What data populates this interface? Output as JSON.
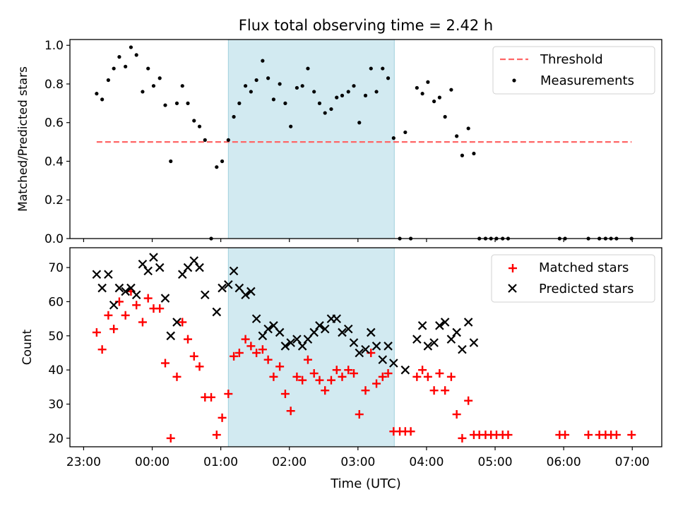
{
  "title": "Flux total observing time = 2.42 h",
  "x_axis": {
    "label": "Time (UTC)",
    "ticks": [
      "23:00",
      "00:00",
      "01:00",
      "02:00",
      "03:00",
      "04:00",
      "05:00",
      "06:00",
      "07:00"
    ],
    "tick_values_h": [
      23,
      24,
      25,
      26,
      27,
      28,
      29,
      30,
      31
    ],
    "range_h": [
      22.8,
      31.43
    ]
  },
  "colors": {
    "measurement": "#000000",
    "threshold": "#ff6666",
    "matched": "#ff0000",
    "predicted": "#000000",
    "shade": "#add8e6"
  },
  "chart_data": [
    {
      "type": "scatter",
      "ylabel": "Matched/Predicted stars",
      "ylim": [
        0.0,
        1.03
      ],
      "yticks": [
        "0.0",
        "0.2",
        "0.4",
        "0.6",
        "0.8",
        "1.0"
      ],
      "ytick_values": [
        0.0,
        0.2,
        0.4,
        0.6,
        0.8,
        1.0
      ],
      "legend_position": "top-right",
      "legend": [
        "Threshold",
        "Measurements"
      ],
      "shaded_x_range": [
        25.11,
        27.53
      ],
      "threshold": {
        "name": "Threshold",
        "y": 0.5,
        "x_range": [
          23.19,
          30.99
        ]
      },
      "series": [
        {
          "name": "Measurements",
          "points": [
            [
              23.19,
              0.75
            ],
            [
              23.27,
              0.72
            ],
            [
              23.36,
              0.82
            ],
            [
              23.44,
              0.88
            ],
            [
              23.52,
              0.94
            ],
            [
              23.61,
              0.89
            ],
            [
              23.69,
              0.99
            ],
            [
              23.77,
              0.95
            ],
            [
              23.86,
              0.76
            ],
            [
              23.94,
              0.88
            ],
            [
              24.02,
              0.79
            ],
            [
              24.11,
              0.83
            ],
            [
              24.19,
              0.69
            ],
            [
              24.27,
              0.4
            ],
            [
              24.36,
              0.7
            ],
            [
              24.44,
              0.79
            ],
            [
              24.52,
              0.7
            ],
            [
              24.61,
              0.61
            ],
            [
              24.69,
              0.58
            ],
            [
              24.77,
              0.51
            ],
            [
              24.86,
              0.0
            ],
            [
              24.94,
              0.37
            ],
            [
              25.02,
              0.4
            ],
            [
              25.11,
              0.51
            ],
            [
              25.19,
              0.63
            ],
            [
              25.27,
              0.7
            ],
            [
              25.36,
              0.79
            ],
            [
              25.44,
              0.76
            ],
            [
              25.52,
              0.82
            ],
            [
              25.61,
              0.92
            ],
            [
              25.69,
              0.83
            ],
            [
              25.77,
              0.72
            ],
            [
              25.86,
              0.8
            ],
            [
              25.94,
              0.7
            ],
            [
              26.02,
              0.58
            ],
            [
              26.11,
              0.78
            ],
            [
              26.19,
              0.79
            ],
            [
              26.27,
              0.88
            ],
            [
              26.36,
              0.76
            ],
            [
              26.44,
              0.7
            ],
            [
              26.52,
              0.65
            ],
            [
              26.61,
              0.67
            ],
            [
              26.69,
              0.73
            ],
            [
              26.77,
              0.74
            ],
            [
              26.86,
              0.76
            ],
            [
              26.94,
              0.79
            ],
            [
              27.02,
              0.6
            ],
            [
              27.11,
              0.74
            ],
            [
              27.19,
              0.88
            ],
            [
              27.27,
              0.76
            ],
            [
              27.36,
              0.88
            ],
            [
              27.44,
              0.83
            ],
            [
              27.52,
              0.52
            ],
            [
              27.61,
              0.0
            ],
            [
              27.69,
              0.55
            ],
            [
              27.77,
              0.0
            ],
            [
              27.86,
              0.78
            ],
            [
              27.94,
              0.75
            ],
            [
              28.02,
              0.81
            ],
            [
              28.11,
              0.71
            ],
            [
              28.19,
              0.73
            ],
            [
              28.27,
              0.63
            ],
            [
              28.36,
              0.77
            ],
            [
              28.44,
              0.53
            ],
            [
              28.52,
              0.43
            ],
            [
              28.61,
              0.57
            ],
            [
              28.69,
              0.44
            ],
            [
              28.77,
              0.0
            ],
            [
              28.86,
              0.0
            ],
            [
              28.94,
              0.0
            ],
            [
              29.02,
              0.0
            ],
            [
              29.11,
              0.0
            ],
            [
              29.19,
              0.0
            ],
            [
              29.94,
              0.0
            ],
            [
              30.02,
              0.0
            ],
            [
              30.36,
              0.0
            ],
            [
              30.52,
              0.0
            ],
            [
              30.61,
              0.0
            ],
            [
              30.69,
              0.0
            ],
            [
              30.77,
              0.0
            ],
            [
              30.99,
              0.0
            ]
          ]
        }
      ]
    },
    {
      "type": "scatter",
      "ylabel": "Count",
      "ylim": [
        17.5,
        75.8
      ],
      "yticks": [
        "20",
        "30",
        "40",
        "50",
        "60",
        "70"
      ],
      "ytick_values": [
        20,
        30,
        40,
        50,
        60,
        70
      ],
      "legend_position": "top-right",
      "legend": [
        "Matched stars",
        "Predicted stars"
      ],
      "shaded_x_range": [
        25.11,
        27.53
      ],
      "series": [
        {
          "name": "Matched stars",
          "marker": "+",
          "points": [
            [
              23.19,
              51
            ],
            [
              23.27,
              46
            ],
            [
              23.36,
              56
            ],
            [
              23.44,
              52
            ],
            [
              23.52,
              60
            ],
            [
              23.61,
              56
            ],
            [
              23.69,
              63
            ],
            [
              23.77,
              59
            ],
            [
              23.86,
              54
            ],
            [
              23.94,
              61
            ],
            [
              24.02,
              58
            ],
            [
              24.11,
              58
            ],
            [
              24.19,
              42
            ],
            [
              24.27,
              20
            ],
            [
              24.36,
              38
            ],
            [
              24.44,
              54
            ],
            [
              24.52,
              49
            ],
            [
              24.61,
              44
            ],
            [
              24.69,
              41
            ],
            [
              24.77,
              32
            ],
            [
              24.86,
              32
            ],
            [
              24.94,
              21
            ],
            [
              25.02,
              26
            ],
            [
              25.11,
              33
            ],
            [
              25.19,
              44
            ],
            [
              25.27,
              45
            ],
            [
              25.36,
              49
            ],
            [
              25.44,
              47
            ],
            [
              25.52,
              45
            ],
            [
              25.61,
              46
            ],
            [
              25.69,
              43
            ],
            [
              25.77,
              38
            ],
            [
              25.86,
              41
            ],
            [
              25.94,
              33
            ],
            [
              26.02,
              28
            ],
            [
              26.11,
              38
            ],
            [
              26.19,
              37
            ],
            [
              26.27,
              43
            ],
            [
              26.36,
              39
            ],
            [
              26.44,
              37
            ],
            [
              26.52,
              34
            ],
            [
              26.61,
              37
            ],
            [
              26.69,
              40
            ],
            [
              26.77,
              38
            ],
            [
              26.86,
              40
            ],
            [
              26.94,
              39
            ],
            [
              27.02,
              27
            ],
            [
              27.11,
              34
            ],
            [
              27.19,
              45
            ],
            [
              27.27,
              36
            ],
            [
              27.36,
              38
            ],
            [
              27.44,
              39
            ],
            [
              27.52,
              22
            ],
            [
              27.61,
              22
            ],
            [
              27.69,
              22
            ],
            [
              27.77,
              22
            ],
            [
              27.86,
              38
            ],
            [
              27.94,
              40
            ],
            [
              28.02,
              38
            ],
            [
              28.11,
              34
            ],
            [
              28.19,
              39
            ],
            [
              28.27,
              34
            ],
            [
              28.36,
              38
            ],
            [
              28.44,
              27
            ],
            [
              28.52,
              20
            ],
            [
              28.61,
              31
            ],
            [
              28.69,
              21
            ],
            [
              28.77,
              21
            ],
            [
              28.86,
              21
            ],
            [
              28.94,
              21
            ],
            [
              29.02,
              21
            ],
            [
              29.11,
              21
            ],
            [
              29.19,
              21
            ],
            [
              29.94,
              21
            ],
            [
              30.02,
              21
            ],
            [
              30.36,
              21
            ],
            [
              30.52,
              21
            ],
            [
              30.61,
              21
            ],
            [
              30.69,
              21
            ],
            [
              30.77,
              21
            ],
            [
              30.99,
              21
            ]
          ]
        },
        {
          "name": "Predicted stars",
          "marker": "x",
          "points": [
            [
              23.19,
              68
            ],
            [
              23.27,
              64
            ],
            [
              23.36,
              68
            ],
            [
              23.44,
              59
            ],
            [
              23.52,
              64
            ],
            [
              23.61,
              63
            ],
            [
              23.69,
              64
            ],
            [
              23.77,
              62
            ],
            [
              23.86,
              71
            ],
            [
              23.94,
              69
            ],
            [
              24.02,
              73
            ],
            [
              24.11,
              70
            ],
            [
              24.19,
              61
            ],
            [
              24.27,
              50
            ],
            [
              24.36,
              54
            ],
            [
              24.44,
              68
            ],
            [
              24.52,
              70
            ],
            [
              24.61,
              72
            ],
            [
              24.69,
              70
            ],
            [
              24.77,
              62
            ],
            [
              24.94,
              57
            ],
            [
              25.02,
              64
            ],
            [
              25.11,
              65
            ],
            [
              25.19,
              69
            ],
            [
              25.27,
              64
            ],
            [
              25.36,
              62
            ],
            [
              25.44,
              63
            ],
            [
              25.52,
              55
            ],
            [
              25.61,
              50
            ],
            [
              25.69,
              52
            ],
            [
              25.77,
              53
            ],
            [
              25.86,
              51
            ],
            [
              25.94,
              47
            ],
            [
              26.02,
              48
            ],
            [
              26.11,
              49
            ],
            [
              26.19,
              47
            ],
            [
              26.27,
              49
            ],
            [
              26.36,
              51
            ],
            [
              26.44,
              53
            ],
            [
              26.52,
              52
            ],
            [
              26.61,
              55
            ],
            [
              26.69,
              55
            ],
            [
              26.77,
              51
            ],
            [
              26.86,
              52
            ],
            [
              26.94,
              48
            ],
            [
              27.02,
              45
            ],
            [
              27.11,
              46
            ],
            [
              27.19,
              51
            ],
            [
              27.27,
              47
            ],
            [
              27.36,
              43
            ],
            [
              27.44,
              47
            ],
            [
              27.52,
              42
            ],
            [
              27.69,
              40
            ],
            [
              27.86,
              49
            ],
            [
              27.94,
              53
            ],
            [
              28.02,
              47
            ],
            [
              28.11,
              48
            ],
            [
              28.19,
              53
            ],
            [
              28.27,
              54
            ],
            [
              28.36,
              49
            ],
            [
              28.44,
              51
            ],
            [
              28.52,
              46
            ],
            [
              28.61,
              54
            ],
            [
              28.69,
              48
            ]
          ]
        }
      ]
    }
  ]
}
